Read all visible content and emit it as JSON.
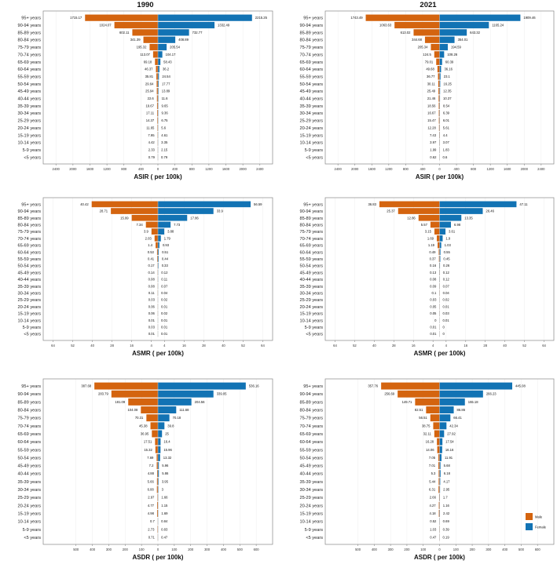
{
  "colors": {
    "male": "#D4640F",
    "female": "#1273B4",
    "frame": "#888888"
  },
  "column_titles": [
    "1990",
    "2021"
  ],
  "legend": {
    "male": "Male",
    "female": "Female"
  },
  "chart_data": [
    {
      "type": "bar",
      "orientation": "population-pyramid",
      "panel": "ASIR 1990",
      "title": "1990",
      "xlabel": "ASIR ( per 100k)",
      "xlim": [
        -2700,
        2700
      ],
      "xticks": [
        -2400,
        -2000,
        -1600,
        -1200,
        -800,
        -400,
        0,
        400,
        800,
        1200,
        1600,
        2000,
        2400
      ],
      "xtick_labels": [
        "2400",
        "2000",
        "1600",
        "1200",
        "800",
        "400",
        "0",
        "400",
        "800",
        "1200",
        "1600",
        "2000",
        "2400"
      ],
      "categories": [
        "95+ years",
        "90-94 years",
        "85-89 years",
        "80-84 years",
        "75-79 years",
        "70-74 years",
        "65-69 years",
        "60-64 years",
        "55-59 years",
        "50-54 years",
        "45-49 years",
        "40-44 years",
        "35-39 years",
        "30-34 years",
        "25-29 years",
        "20-24 years",
        "15-19 years",
        "10-14 years",
        "5-9 years",
        "<5 years"
      ],
      "series": [
        {
          "name": "Male",
          "values": [
            1715.17,
            1024.07,
            602.11,
            341.39,
            195.32,
            113.07,
            69.18,
            46.37,
            35.81,
            29.64,
            25.94,
            22.6,
            19.67,
            17.11,
            14.37,
            11.65,
            7.95,
            4.42,
            2.33,
            0.79
          ],
          "labels": [
            "1715.17",
            "1024.07",
            "602.11",
            "341.39",
            "195.32",
            "113.07",
            "69.18",
            "46.37",
            "35.81",
            "29.64",
            "25.94",
            "22.6",
            "19.67",
            "17.11",
            "14.37",
            "11.65",
            "7.95",
            "4.42",
            "2.33",
            "0.79"
          ]
        },
        {
          "name": "Female",
          "values": [
            2215.25,
            1332.49,
            732.77,
            408.89,
            205.54,
            104.17,
            58.43,
            36.2,
            24.54,
            17.77,
            13.89,
            11.6,
            9.65,
            9.36,
            6.75,
            5.6,
            4.61,
            3.35,
            2.15,
            0.79
          ],
          "labels": [
            "2215.25",
            "1332.49",
            "732.77",
            "408.89",
            "205.54",
            "104.17",
            "58.43",
            "36.2",
            "24.54",
            "17.77",
            "13.89",
            "11.6",
            "9.65",
            "9.36",
            "6.75",
            "5.6",
            "4.61",
            "3.35",
            "2.15",
            "0.79"
          ]
        }
      ]
    },
    {
      "type": "bar",
      "orientation": "population-pyramid",
      "panel": "ASIR 2021",
      "title": "2021",
      "xlabel": "ASIR ( per 100k)",
      "xlim": [
        -2700,
        2700
      ],
      "xticks": [
        -2400,
        -2000,
        -1600,
        -1200,
        -800,
        -400,
        0,
        400,
        800,
        1200,
        1600,
        2000,
        2400
      ],
      "xtick_labels": [
        "2400",
        "2000",
        "1600",
        "1200",
        "800",
        "400",
        "0",
        "400",
        "800",
        "1200",
        "1600",
        "2000",
        "2400"
      ],
      "categories": [
        "95+ years",
        "90-94 years",
        "85-89 years",
        "80-84 years",
        "75-79 years",
        "70-74 years",
        "65-69 years",
        "60-64 years",
        "55-59 years",
        "50-54 years",
        "45-49 years",
        "40-44 years",
        "35-39 years",
        "30-34 years",
        "25-29 years",
        "20-24 years",
        "15-19 years",
        "10-14 years",
        "5-9 years",
        "<5 years"
      ],
      "series": [
        {
          "name": "Male",
          "values": [
            1743.49,
            1063.63,
            613.02,
            344.68,
            205.34,
            124.5,
            79.01,
            49.68,
            36.77,
            30.11,
            25.49,
            21.46,
            18.56,
            16.67,
            15.47,
            12.28,
            7.43,
            3.97,
            1.99,
            0.62
          ],
          "labels": [
            "1743.49",
            "1063.63",
            "613.02",
            "344.68",
            "205.34",
            "124.5",
            "79.01",
            "49.68",
            "36.77",
            "30.11",
            "25.49",
            "21.46",
            "18.56",
            "16.67",
            "15.47",
            "12.28",
            "7.43",
            "3.97",
            "1.99",
            "0.62"
          ]
        },
        {
          "name": "Female",
          "values": [
            1909.46,
            1165.24,
            643.32,
            354.01,
            194.59,
            108.26,
            60.39,
            36.16,
            23.1,
            16.25,
            12.35,
            10.37,
            8.54,
            6.39,
            6.01,
            5.61,
            4.4,
            3.07,
            1.83,
            0.6
          ],
          "labels": [
            "1909.46",
            "1165.24",
            "643.32",
            "354.01",
            "194.59",
            "108.26",
            "60.39",
            "36.16",
            "23.1",
            "16.25",
            "12.35",
            "10.37",
            "8.54",
            "6.39",
            "6.01",
            "5.61",
            "4.4",
            "3.07",
            "1.83",
            "0.6"
          ]
        }
      ]
    },
    {
      "type": "bar",
      "orientation": "population-pyramid",
      "panel": "ASMR 1990",
      "title": "",
      "xlabel": "ASMR ( per 100k)",
      "xlim": [
        -70,
        70
      ],
      "xticks": [
        -64,
        -52,
        -40,
        -28,
        -16,
        -4,
        4,
        16,
        28,
        40,
        52,
        64
      ],
      "xtick_labels": [
        "64",
        "52",
        "40",
        "28",
        "16",
        "4",
        "4",
        "16",
        "28",
        "40",
        "52",
        "64"
      ],
      "categories": [
        "95+ years",
        "90-94 years",
        "85-89 years",
        "80-84 years",
        "75-79 years",
        "70-74 years",
        "65-69 years",
        "60-64 years",
        "55-59 years",
        "50-54 years",
        "45-49 years",
        "40-44 years",
        "35-39 years",
        "30-34 years",
        "25-29 years",
        "20-24 years",
        "15-19 years",
        "10-14 years",
        "5-9 years",
        "<5 years"
      ],
      "series": [
        {
          "name": "Male",
          "values": [
            40.42,
            28.71,
            15.99,
            7.34,
            3.9,
            2.03,
            1.4,
            0.53,
            0.41,
            0.17,
            0.14,
            0.08,
            0.08,
            0.11,
            0.03,
            0.06,
            0.06,
            0.01,
            0.03,
            0.01
          ],
          "labels": [
            "40.42",
            "28.71",
            "15.99",
            "7.34",
            "3.9",
            "2.03",
            "1.4",
            "0.53",
            "0.41",
            "0.17",
            "0.14",
            "0.08",
            "0.08",
            "0.11",
            "0.03",
            "0.06",
            "0.06",
            "0.01",
            "0.03",
            "0.01"
          ]
        },
        {
          "name": "Female",
          "values": [
            56.59,
            33.9,
            17.86,
            7.73,
            3.88,
            1.79,
            0.93,
            0.51,
            0.44,
            0.33,
            0.12,
            0.11,
            0.07,
            0.04,
            0.02,
            0.01,
            0.02,
            0.01,
            0.01,
            0.01
          ],
          "labels": [
            "56.59",
            "33.9",
            "17.86",
            "7.73",
            "3.88",
            "1.79",
            "0.93",
            "0.51",
            "0.44",
            "0.33",
            "0.12",
            "0.11",
            "0.07",
            "0.04",
            "0.02",
            "0.01",
            "0.02",
            "0.01",
            "0.01",
            "0.01"
          ]
        }
      ]
    },
    {
      "type": "bar",
      "orientation": "population-pyramid",
      "panel": "ASMR 2021",
      "title": "",
      "xlabel": "ASMR ( per 100k)",
      "xlim": [
        -70,
        70
      ],
      "xticks": [
        -64,
        -52,
        -40,
        -28,
        -16,
        -4,
        4,
        16,
        28,
        40,
        52,
        64
      ],
      "xtick_labels": [
        "64",
        "52",
        "40",
        "28",
        "16",
        "4",
        "4",
        "16",
        "28",
        "40",
        "52",
        "64"
      ],
      "categories": [
        "95+ years",
        "90-94 years",
        "85-89 years",
        "80-84 years",
        "75-79 years",
        "70-74 years",
        "65-69 years",
        "60-64 years",
        "55-59 years",
        "50-54 years",
        "45-49 years",
        "40-44 years",
        "35-39 years",
        "30-34 years",
        "25-29 years",
        "20-24 years",
        "15-19 years",
        "10-14 years",
        "5-9 years",
        "<5 years"
      ],
      "series": [
        {
          "name": "Male",
          "values": [
            36.83,
            25.37,
            12.86,
            5.57,
            3.15,
            1.69,
            1.19,
            0.49,
            0.37,
            0.16,
            0.13,
            0.08,
            0.09,
            0.1,
            0.03,
            0.05,
            0.05,
            0,
            0.01,
            0.01
          ],
          "labels": [
            "36.83",
            "25.37",
            "12.86",
            "5.57",
            "3.15",
            "1.69",
            "1.19",
            "0.49",
            "0.37",
            "0.16",
            "0.13",
            "0.08",
            "0.09",
            "0.1",
            "0.03",
            "0.05",
            "0.05",
            "0",
            "0.01",
            "0.01"
          ]
        },
        {
          "name": "Female",
          "values": [
            47.11,
            26.46,
            13.35,
            6.98,
            3.61,
            1.9,
            1.03,
            0.55,
            0.45,
            0.26,
            0.12,
            0.12,
            0.07,
            0.04,
            0.02,
            0.01,
            0.03,
            0.01,
            0,
            0
          ],
          "labels": [
            "47.11",
            "26.46",
            "13.35",
            "6.98",
            "3.61",
            "1.9",
            "1.03",
            "0.55",
            "0.45",
            "0.26",
            "0.12",
            "0.12",
            "0.07",
            "0.04",
            "0.02",
            "0.01",
            "0.03",
            "0.01",
            "0",
            "0"
          ]
        }
      ]
    },
    {
      "type": "bar",
      "orientation": "population-pyramid",
      "panel": "ASDR 1990",
      "title": "",
      "xlabel": "ASDR ( per 100k)",
      "xlim": [
        -700,
        700
      ],
      "xticks": [
        -500,
        -400,
        -300,
        -200,
        -100,
        0,
        100,
        200,
        300,
        400,
        500,
        600
      ],
      "xtick_labels": [
        "500",
        "400",
        "300",
        "200",
        "100",
        "0",
        "100",
        "200",
        "300",
        "400",
        "500",
        "600"
      ],
      "categories": [
        "95+ years",
        "90-94 years",
        "85-89 years",
        "80-84 years",
        "75-79 years",
        "70-74 years",
        "65-69 years",
        "60-64 years",
        "55-59 years",
        "50-54 years",
        "45-49 years",
        "40-44 years",
        "35-39 years",
        "30-34 years",
        "25-29 years",
        "20-24 years",
        "15-19 years",
        "10-14 years",
        "5-9 years",
        "<5 years"
      ],
      "series": [
        {
          "name": "Male",
          "values": [
            387.68,
            283.79,
            181.09,
            104.08,
            70.31,
            45.38,
            36.95,
            17.51,
            15.32,
            7.69,
            7.2,
            4.88,
            5.66,
            6.08,
            2.97,
            4.77,
            4.98,
            0.7,
            2.73,
            0.71
          ],
          "labels": [
            "387.68",
            "283.79",
            "181.09",
            "104.08",
            "70.31",
            "45.38",
            "36.95",
            "17.51",
            "15.32",
            "7.69",
            "7.2",
            "4.88",
            "5.66",
            "6.08",
            "2.97",
            "4.77",
            "4.98",
            "0.7",
            "2.73",
            "0.71"
          ]
        },
        {
          "name": "Female",
          "values": [
            536.16,
            339.05,
            204.56,
            111.68,
            70.18,
            39.8,
            25,
            16.4,
            15.96,
            13.32,
            5.96,
            5.86,
            3.95,
            3,
            1.66,
            1.15,
            1.69,
            0.84,
            0.83,
            0.47
          ],
          "labels": [
            "536.16",
            "339.05",
            "204.56",
            "111.68",
            "70.18",
            "39.8",
            "25",
            "16.4",
            "15.96",
            "13.32",
            "5.96",
            "5.86",
            "3.95",
            "3",
            "1.66",
            "1.15",
            "1.69",
            "0.84",
            "0.83",
            "0.47"
          ]
        }
      ]
    },
    {
      "type": "bar",
      "orientation": "population-pyramid",
      "panel": "ASDR 2021",
      "title": "",
      "xlabel": "ASDR ( per 100k)",
      "xlim": [
        -700,
        700
      ],
      "xticks": [
        -500,
        -400,
        -300,
        -200,
        -100,
        0,
        100,
        200,
        300,
        400,
        500,
        600
      ],
      "xtick_labels": [
        "500",
        "400",
        "300",
        "200",
        "100",
        "0",
        "100",
        "200",
        "300",
        "400",
        "500",
        "600"
      ],
      "categories": [
        "95+ years",
        "90-94 years",
        "85-89 years",
        "80-84 years",
        "75-79 years",
        "70-74 years",
        "65-69 years",
        "60-64 years",
        "55-59 years",
        "50-54 years",
        "45-49 years",
        "40-44 years",
        "35-39 years",
        "30-34 years",
        "25-29 years",
        "20-24 years",
        "15-19 years",
        "10-14 years",
        "5-9 years",
        "<5 years"
      ],
      "series": [
        {
          "name": "Male",
          "values": [
            357.76,
            256.69,
            149.71,
            82.51,
            56.51,
            38.75,
            32.11,
            16.28,
            14.06,
            7.05,
            7.01,
            5.3,
            5.44,
            6.31,
            2.66,
            4.27,
            4.18,
            0.52,
            1.03,
            0.47
          ],
          "labels": [
            "357.76",
            "256.69",
            "149.71",
            "82.51",
            "56.51",
            "38.75",
            "32.11",
            "16.28",
            "14.06",
            "7.05",
            "7.01",
            "5.3",
            "5.44",
            "6.31",
            "2.66",
            "4.27",
            "4.18",
            "0.52",
            "1.03",
            "0.47"
          ]
        },
        {
          "name": "Female",
          "values": [
            445.08,
            266.23,
            155.18,
            86.86,
            66.41,
            42.34,
            27.92,
            17.54,
            16.16,
            11.91,
            5.68,
            6.18,
            4.17,
            2.95,
            1.7,
            1.16,
            2.42,
            0.69,
            0.39,
            0.19
          ],
          "labels": [
            "445.08",
            "266.23",
            "155.18",
            "86.86",
            "66.41",
            "42.34",
            "27.92",
            "17.54",
            "16.16",
            "11.91",
            "5.68",
            "6.18",
            "4.17",
            "2.95",
            "1.7",
            "1.16",
            "2.42",
            "0.69",
            "0.39",
            "0.19"
          ]
        }
      ]
    }
  ]
}
